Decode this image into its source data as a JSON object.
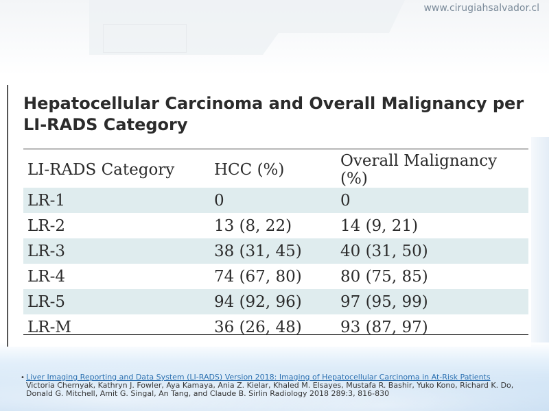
{
  "site_url": "www.cirugiahsalvador.cl",
  "title": "Hepatocellular Carcinoma and Overall Malignancy per LI-RADS Category",
  "table": {
    "headers": [
      "LI-RADS Category",
      "HCC (%)",
      "Overall Malignancy (%)"
    ],
    "rows": [
      [
        "LR-1",
        "0",
        "0"
      ],
      [
        "LR-2",
        "13 (8, 22)",
        "14 (9, 21)"
      ],
      [
        "LR-3",
        "38 (31, 45)",
        "40 (31, 50)"
      ],
      [
        "LR-4",
        "74 (67, 80)",
        "80 (75, 85)"
      ],
      [
        "LR-5",
        "94 (92, 96)",
        "97 (95, 99)"
      ],
      [
        "LR-M",
        "36 (26, 48)",
        "93 (87, 97)"
      ]
    ]
  },
  "reference": {
    "bullet": "•",
    "link_text": "Liver Imaging Reporting and Data System (LI-RADS) Version 2018: Imaging of Hepatocellular Carcinoma in At-Risk Patients",
    "authors": "Victoria Chernyak, Kathryn J. Fowler, Aya Kamaya, Ania Z. Kielar, Khaled M. Elsayes, Mustafa R. Bashir, Yuko Kono, Richard K. Do, Donald G. Mitchell, Amit G. Singal, An Tang, and Claude B. Sirlin Radiology 2018 289:3, 816-830"
  },
  "colors": {
    "row_shade": "#dfecee",
    "link": "#2a6fb0",
    "bottom_band": "#cfe3f5"
  }
}
